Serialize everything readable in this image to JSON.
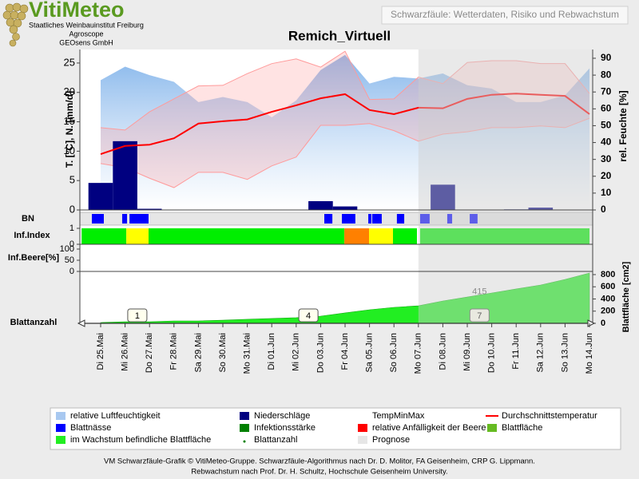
{
  "header": {
    "logo_title": "VitiMeteo",
    "org_lines": [
      "Staatliches Weinbauinstitut Freiburg",
      "Agroscope",
      "GEOsens GmbH"
    ],
    "app_title": "Schwarzfäule: Wetterdaten, Risiko und Rebwachstum"
  },
  "chart_data": [
    {
      "type": "line",
      "title": "Remich_Virtuell",
      "ylabel": "T. [°C], N. [mm/d]",
      "y2label": "rel. Feuchte [%]",
      "categories": [
        "Di 25.Mai",
        "Mi 26.Mai",
        "Do 27.Mai",
        "Fr 28.Mai",
        "Sa 29.Mai",
        "So 30.Mai",
        "Mo 31.Mai",
        "Di 01.Jun",
        "Mi 02.Jun",
        "Do 03.Jun",
        "Fr 04.Jun",
        "Sa 05.Jun",
        "So 06.Jun",
        "Mo 07.Jun",
        "Di 08.Jun",
        "Mi 09.Jun",
        "Do 10.Jun",
        "Fr 11.Jun",
        "Sa 12.Jun",
        "So 13.Jun",
        "Mo 14.Jun"
      ],
      "xlim": [
        -0.85,
        20.13
      ],
      "ylim": [
        0,
        27.3
      ],
      "yticks": [
        0,
        5,
        10,
        15,
        20,
        25
      ],
      "y2lim": [
        0,
        95.2
      ],
      "y2ticks": [
        0,
        10,
        20,
        30,
        40,
        50,
        60,
        70,
        80,
        90
      ],
      "forecast_start": "Mo 07.Jun",
      "series": [
        {
          "name": "relative Luftfeuchtigkeit",
          "type": "area",
          "axis": "y2",
          "color": "#8fbdec",
          "values": [
            77,
            85,
            80,
            76,
            64,
            67,
            64,
            55,
            65,
            83,
            92,
            75,
            79,
            78,
            81,
            74,
            72,
            64,
            64,
            68,
            84
          ]
        },
        {
          "name": "TempMinMax",
          "type": "band",
          "color": "#ff9a9a",
          "low": [
            7.9,
            7.2,
            5.4,
            3.8,
            6.4,
            6.4,
            5.2,
            7.5,
            9.0,
            14.4,
            14.4,
            14.7,
            13.5,
            11.7,
            12.9,
            13.3,
            14.0,
            14.0,
            14.3,
            14.0,
            15.6
          ],
          "high": [
            14.0,
            13.6,
            16.7,
            18.9,
            21.1,
            21.2,
            23.2,
            24.9,
            25.7,
            24.3,
            27.0,
            18.8,
            18.9,
            22.6,
            21.5,
            25.1,
            25.4,
            25.4,
            24.9,
            24.9,
            19.8
          ]
        },
        {
          "name": "Niederschläge",
          "type": "bar",
          "color": "#000080",
          "values": [
            4.6,
            11.7,
            0.2,
            0,
            0,
            0,
            0,
            0,
            0,
            1.5,
            0.6,
            0,
            0,
            0,
            4.3,
            0,
            0,
            0.1,
            0.4,
            0,
            0
          ]
        },
        {
          "name": "Durchschnittstemperatur",
          "type": "line",
          "color": "#ff0000",
          "values": [
            9.5,
            10.9,
            11.1,
            12.2,
            14.7,
            15.1,
            15.4,
            16.7,
            17.8,
            19.0,
            19.7,
            17.0,
            16.3,
            17.4,
            17.3,
            18.9,
            19.6,
            19.8,
            19.6,
            19.4,
            16.3
          ]
        }
      ]
    },
    {
      "type": "timeline",
      "label": "BN",
      "color": "#0000ff",
      "periods": [
        [
          -0.36,
          0.13
        ],
        [
          0.88,
          1.08
        ],
        [
          1.18,
          1.96
        ],
        [
          9.15,
          9.48
        ],
        [
          9.87,
          10.42
        ],
        [
          10.95,
          11.08
        ],
        [
          11.11,
          11.5
        ],
        [
          12.12,
          12.42
        ],
        [
          13.07,
          13.46
        ],
        [
          14.18,
          14.38
        ],
        [
          15.1,
          15.42
        ]
      ]
    },
    {
      "type": "segments",
      "label": "Inf.Index",
      "ylim": [
        0,
        1.1
      ],
      "yticks": [
        0,
        1
      ],
      "segments": [
        {
          "from": -0.78,
          "to": 1.05,
          "value": 1,
          "color": "#00ee00"
        },
        {
          "from": 1.05,
          "to": 1.96,
          "value": 1,
          "color": "#ffff00"
        },
        {
          "from": 1.96,
          "to": 9.97,
          "value": 1,
          "color": "#00ee00"
        },
        {
          "from": 9.97,
          "to": 10.98,
          "value": 1,
          "color": "#ff8000"
        },
        {
          "from": 10.98,
          "to": 11.96,
          "value": 1,
          "color": "#ffff00"
        },
        {
          "from": 11.96,
          "to": 12.94,
          "value": 1,
          "color": "#00ee00"
        },
        {
          "from": 13.07,
          "to": 20.0,
          "value": 1,
          "color": "#00ee00"
        }
      ]
    },
    {
      "type": "line",
      "label": "Inf.Beere[%]",
      "ylim": [
        0,
        100
      ],
      "yticks": [
        0,
        50,
        100
      ],
      "series": []
    },
    {
      "type": "area",
      "label": "Blattanzahl",
      "y2label": "Blattfläche [cm2]",
      "y2lim": [
        0,
        852
      ],
      "y2ticks": [
        0,
        200,
        400,
        600,
        800
      ],
      "series": [
        {
          "name": "im Wachstum befindliche Blattfläche",
          "axis": "y2",
          "color": "#22ee22",
          "values": [
            13,
            26,
            26,
            39,
            39,
            52,
            66,
            79,
            92,
            118,
            171,
            223,
            262,
            288,
            367,
            432,
            498,
            564,
            629,
            721,
            826
          ]
        }
      ],
      "leaf_count": {
        "x": [
          1.5,
          8.5,
          15.5
        ],
        "values": [
          1,
          4,
          7
        ]
      },
      "annotations": [
        {
          "x": 15.5,
          "text": "415"
        }
      ]
    }
  ],
  "legend": [
    {
      "name": "relative Luftfeuchtigkeit",
      "color": "#a8c8f0",
      "symbol": "box"
    },
    {
      "name": "Niederschläge",
      "color": "#000080",
      "symbol": "box"
    },
    {
      "name": "TempMinMax",
      "color": "#ffffff",
      "symbol": "none"
    },
    {
      "name": "Durchschnittstemperatur",
      "color": "#ff0000",
      "symbol": "line"
    },
    {
      "name": "Blattnässe",
      "color": "#0000ff",
      "symbol": "box"
    },
    {
      "name": "Infektionsstärke",
      "color": "#008000",
      "symbol": "box"
    },
    {
      "name": "relative Anfälligkeit der Beere",
      "color": "#ff0000",
      "symbol": "box"
    },
    {
      "name": "Blattfläche",
      "color": "#66bb22",
      "symbol": "box"
    },
    {
      "name": "im Wachstum befindliche Blattfläche",
      "color": "#22ee22",
      "symbol": "box"
    },
    {
      "name": "Blattanzahl",
      "color": "#008000",
      "symbol": "dot"
    },
    {
      "name": "Prognose",
      "color": "#e6e6e6",
      "symbol": "box"
    }
  ],
  "footer": [
    "VM Schwarzfäule-Grafik © VitiMeteo-Gruppe. Schwarzfäule-Algorithmus nach Dr. D. Molitor, FA Geisenheim, CRP G. Lippmann.",
    "Rebwachstum nach Prof. Dr. H. Schultz, Hochschule Geisenheim University."
  ]
}
